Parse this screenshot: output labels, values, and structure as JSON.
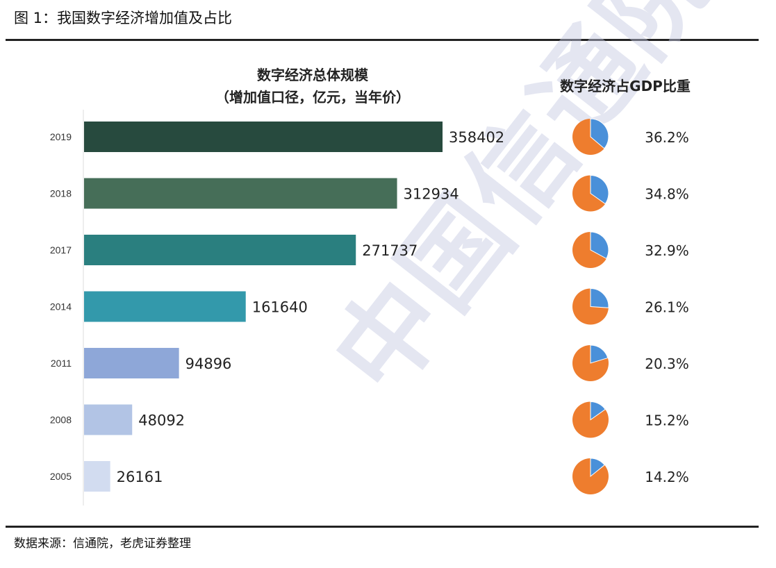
{
  "figure": {
    "title": "图 1：我国数字经济增加值及占比",
    "source": "数据来源：信通院，老虎证券整理",
    "watermark": "中国信通院"
  },
  "chart_data": [
    {
      "type": "bar",
      "orientation": "horizontal",
      "title_line1": "数字经济总体规模",
      "title_line2": "（增加值口径，亿元，当年价）",
      "categories": [
        "2019",
        "2018",
        "2017",
        "2014",
        "2011",
        "2008",
        "2005"
      ],
      "values": [
        358402,
        312934,
        271737,
        161640,
        94896,
        48092,
        26161
      ],
      "value_labels": [
        "358402",
        "312934",
        "271737",
        "161640",
        "94896",
        "48092",
        "26161"
      ],
      "colors": [
        "#274a3e",
        "#466e58",
        "#2a7f7f",
        "#3399ab",
        "#8ea7d8",
        "#b2c4e5",
        "#d2dcf0"
      ],
      "xlim": [
        0,
        358402
      ]
    },
    {
      "type": "pie",
      "title": "数字经济占GDP比重",
      "categories": [
        "2019",
        "2018",
        "2017",
        "2014",
        "2011",
        "2008",
        "2005"
      ],
      "values": [
        36.2,
        34.8,
        32.9,
        26.1,
        20.3,
        15.2,
        14.2
      ],
      "value_labels": [
        "36.2%",
        "34.8%",
        "32.9%",
        "26.1%",
        "20.3%",
        "15.2%",
        "14.2%"
      ],
      "colors": {
        "share": "#4a90d9",
        "rest": "#ee7d2e"
      }
    }
  ]
}
